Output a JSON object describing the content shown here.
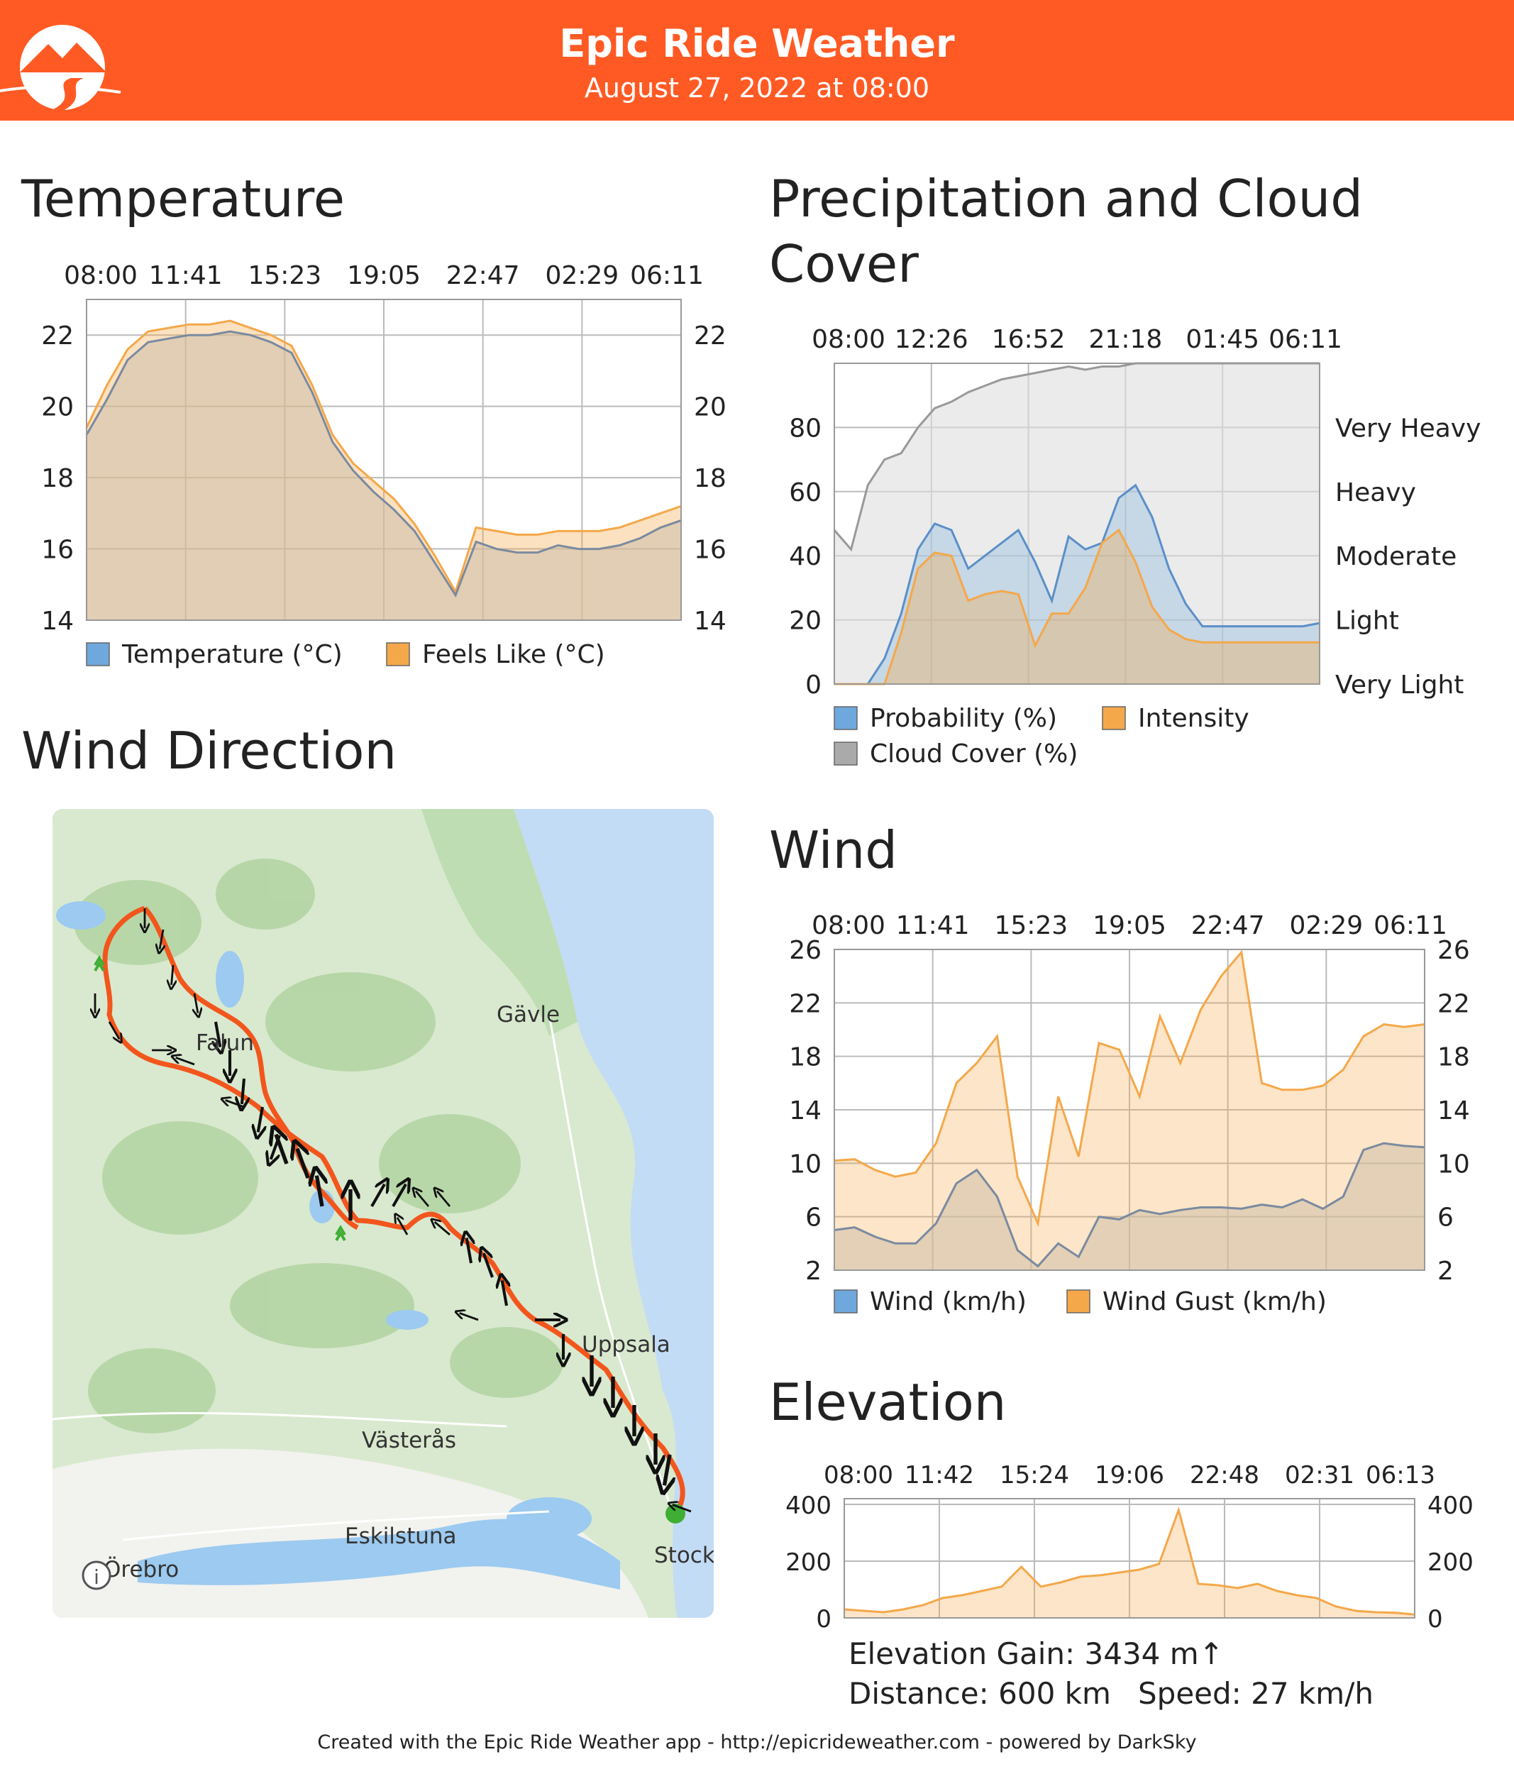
{
  "header": {
    "title": "Epic Ride Weather",
    "subtitle": "August 27, 2022 at 08:00"
  },
  "sections": {
    "temperature": "Temperature",
    "precip": "Precipitation and Cloud Cover",
    "wind_direction": "Wind Direction",
    "wind": "Wind",
    "elevation": "Elevation"
  },
  "map": {
    "labels": [
      "Gävle",
      "Falun",
      "Uppsala",
      "Västerås",
      "Eskilstuna",
      "Örebro",
      "Stock"
    ],
    "info_glyph": "i"
  },
  "stats": {
    "elevation_gain": "Elevation Gain: 3434 m↑",
    "distance": "Distance: 600 km",
    "speed": "Speed: 27 km/h"
  },
  "footer": "Created with the Epic Ride Weather app - http://epicrideweather.com - powered by DarkSky",
  "colors": {
    "header": "#ff5a24",
    "blue": "#6fa8dc",
    "orange": "#f4a84a",
    "route": "#f2561d",
    "gray": "#aaaaaa"
  },
  "chart_data": [
    {
      "id": "temperature",
      "type": "area",
      "title": "Temperature",
      "x_ticks": [
        "08:00",
        "11:41",
        "15:23",
        "19:05",
        "22:47",
        "02:29",
        "06:11"
      ],
      "y_ticks": [
        14,
        16,
        18,
        20,
        22
      ],
      "ylim": [
        14,
        23
      ],
      "legend": [
        "Temperature (°C)",
        "Feels Like (°C)"
      ],
      "series": [
        {
          "name": "Temperature (°C)",
          "values": [
            19.2,
            20.2,
            21.3,
            21.8,
            21.9,
            22.0,
            22.0,
            22.1,
            22.0,
            21.8,
            21.5,
            20.4,
            19.0,
            18.2,
            17.6,
            17.1,
            16.5,
            15.6,
            14.7,
            16.2,
            16.0,
            15.9,
            15.9,
            16.1,
            16.0,
            16.0,
            16.1,
            16.3,
            16.6,
            16.8
          ]
        },
        {
          "name": "Feels Like (°C)",
          "values": [
            19.4,
            20.6,
            21.6,
            22.1,
            22.2,
            22.3,
            22.3,
            22.4,
            22.2,
            22.0,
            21.7,
            20.6,
            19.2,
            18.4,
            17.9,
            17.4,
            16.7,
            15.8,
            14.8,
            16.6,
            16.5,
            16.4,
            16.4,
            16.5,
            16.5,
            16.5,
            16.6,
            16.8,
            17.0,
            17.2
          ]
        }
      ]
    },
    {
      "id": "precip",
      "type": "area",
      "title": "Precipitation and Cloud Cover",
      "x_ticks": [
        "08:00",
        "12:26",
        "16:52",
        "21:18",
        "01:45",
        "06:11"
      ],
      "y_ticks": [
        0,
        20,
        40,
        60,
        80
      ],
      "ylim": [
        0,
        100
      ],
      "right_labels": [
        "Very Light",
        "Light",
        "Moderate",
        "Heavy",
        "Very Heavy"
      ],
      "legend": [
        "Probability (%)",
        "Intensity",
        "Cloud Cover (%)"
      ],
      "series": [
        {
          "name": "Cloud Cover (%)",
          "values": [
            48,
            42,
            62,
            70,
            72,
            80,
            86,
            88,
            91,
            93,
            95,
            96,
            97,
            98,
            99,
            98,
            99,
            99,
            100,
            100,
            100,
            100,
            100,
            100,
            100,
            100,
            100,
            100,
            100,
            100
          ]
        },
        {
          "name": "Probability (%)",
          "values": [
            0,
            0,
            0,
            8,
            22,
            42,
            50,
            48,
            36,
            40,
            44,
            48,
            38,
            26,
            46,
            42,
            44,
            58,
            62,
            52,
            36,
            25,
            18,
            18,
            18,
            18,
            18,
            18,
            18,
            19
          ]
        },
        {
          "name": "Intensity",
          "values": [
            0,
            0,
            0,
            0,
            16,
            36,
            41,
            40,
            26,
            28,
            29,
            28,
            12,
            22,
            22,
            30,
            44,
            48,
            38,
            24,
            17,
            14,
            13,
            13,
            13,
            13,
            13,
            13,
            13,
            13
          ]
        }
      ]
    },
    {
      "id": "wind",
      "type": "area",
      "title": "Wind",
      "x_ticks": [
        "08:00",
        "11:41",
        "15:23",
        "19:05",
        "22:47",
        "02:29",
        "06:11"
      ],
      "y_ticks": [
        2,
        6,
        10,
        14,
        18,
        22,
        26
      ],
      "ylim": [
        2,
        26
      ],
      "legend": [
        "Wind (km/h)",
        "Wind Gust (km/h)"
      ],
      "series": [
        {
          "name": "Wind (km/h)",
          "values": [
            5.0,
            5.2,
            4.5,
            4.0,
            4.0,
            5.5,
            8.5,
            9.5,
            7.5,
            3.5,
            2.3,
            4.0,
            3.0,
            6.0,
            5.8,
            6.5,
            6.2,
            6.5,
            6.7,
            6.7,
            6.6,
            6.9,
            6.7,
            7.3,
            6.6,
            7.5,
            11.0,
            11.5,
            11.3,
            11.2
          ]
        },
        {
          "name": "Wind Gust (km/h)",
          "values": [
            10.2,
            10.3,
            9.5,
            9.0,
            9.3,
            11.5,
            16.0,
            17.5,
            19.5,
            9.0,
            5.5,
            15.0,
            10.5,
            19.0,
            18.5,
            15.0,
            21.0,
            17.5,
            21.5,
            24.0,
            25.8,
            16.0,
            15.5,
            15.5,
            15.8,
            17.0,
            19.5,
            20.4,
            20.2,
            20.4
          ]
        }
      ]
    },
    {
      "id": "elevation",
      "type": "area",
      "title": "Elevation",
      "x_ticks": [
        "08:00",
        "11:42",
        "15:24",
        "19:06",
        "22:48",
        "02:31",
        "06:13"
      ],
      "y_ticks": [
        0,
        200,
        400
      ],
      "ylim": [
        0,
        420
      ],
      "series": [
        {
          "name": "",
          "values": [
            30,
            25,
            20,
            30,
            45,
            70,
            80,
            95,
            110,
            180,
            110,
            125,
            145,
            150,
            160,
            170,
            190,
            380,
            120,
            115,
            105,
            120,
            95,
            80,
            70,
            40,
            25,
            20,
            18,
            12
          ]
        }
      ]
    }
  ]
}
